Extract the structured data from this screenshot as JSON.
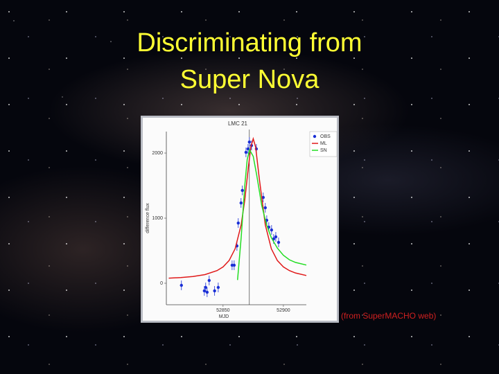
{
  "slide": {
    "title_lines": [
      "Discriminating from",
      "Super Nova"
    ],
    "caption": "(from SuperMACHO web)"
  },
  "chart_data": {
    "type": "line",
    "title": "LMC 21",
    "x_label": "MJD",
    "y_label": "difference flux",
    "xlim": [
      52803,
      52919
    ],
    "ylim": [
      -330,
      2330
    ],
    "xticks": [
      52850,
      52900
    ],
    "yticks": [
      0,
      1000,
      2000
    ],
    "legend": "upper right",
    "series": [
      {
        "name": "OBS",
        "color": "#1a2fd6",
        "markers": true,
        "x": [
          52815.5,
          52834.5,
          52835.6,
          52836.8,
          52838.5,
          52843,
          52846,
          52857.5,
          52859.2,
          52861.5,
          52862.6,
          52864.9,
          52866,
          52869,
          52870.7,
          52871.8,
          52873.6,
          52877.6,
          52883.3,
          52885,
          52886.2,
          52887.9,
          52890.2,
          52891.9,
          52893.7,
          52896
        ],
        "values": [
          -32,
          -117,
          -64,
          -138,
          43,
          -117,
          -64,
          277,
          277,
          574,
          925,
          1234,
          1426,
          2011,
          2064,
          2170,
          2117,
          2064,
          1319,
          1160,
          968,
          862,
          819,
          681,
          713,
          628
        ]
      },
      {
        "name": "ML",
        "color": "#e01818",
        "markers": false,
        "x": [
          52805,
          52815,
          52825,
          52835,
          52845,
          52850,
          52855,
          52860,
          52865,
          52868,
          52871,
          52873,
          52875,
          52877,
          52880,
          52885,
          52890,
          52895,
          52900,
          52905,
          52910,
          52919
        ],
        "values": [
          78,
          88,
          104,
          133,
          194,
          251,
          349,
          530,
          897,
          1279,
          1786,
          2092,
          2220,
          2092,
          1611,
          897,
          530,
          349,
          251,
          194,
          158,
          119
        ]
      },
      {
        "name": "SN",
        "color": "#22dd22",
        "markers": false,
        "x": [
          52862,
          52865,
          52868,
          52870,
          52872,
          52875,
          52878,
          52882,
          52886,
          52890,
          52895,
          52900,
          52905,
          52910,
          52919
        ],
        "values": [
          50,
          700,
          1500,
          1900,
          2050,
          1950,
          1650,
          1200,
          900,
          700,
          540,
          430,
          360,
          320,
          280
        ]
      }
    ]
  }
}
